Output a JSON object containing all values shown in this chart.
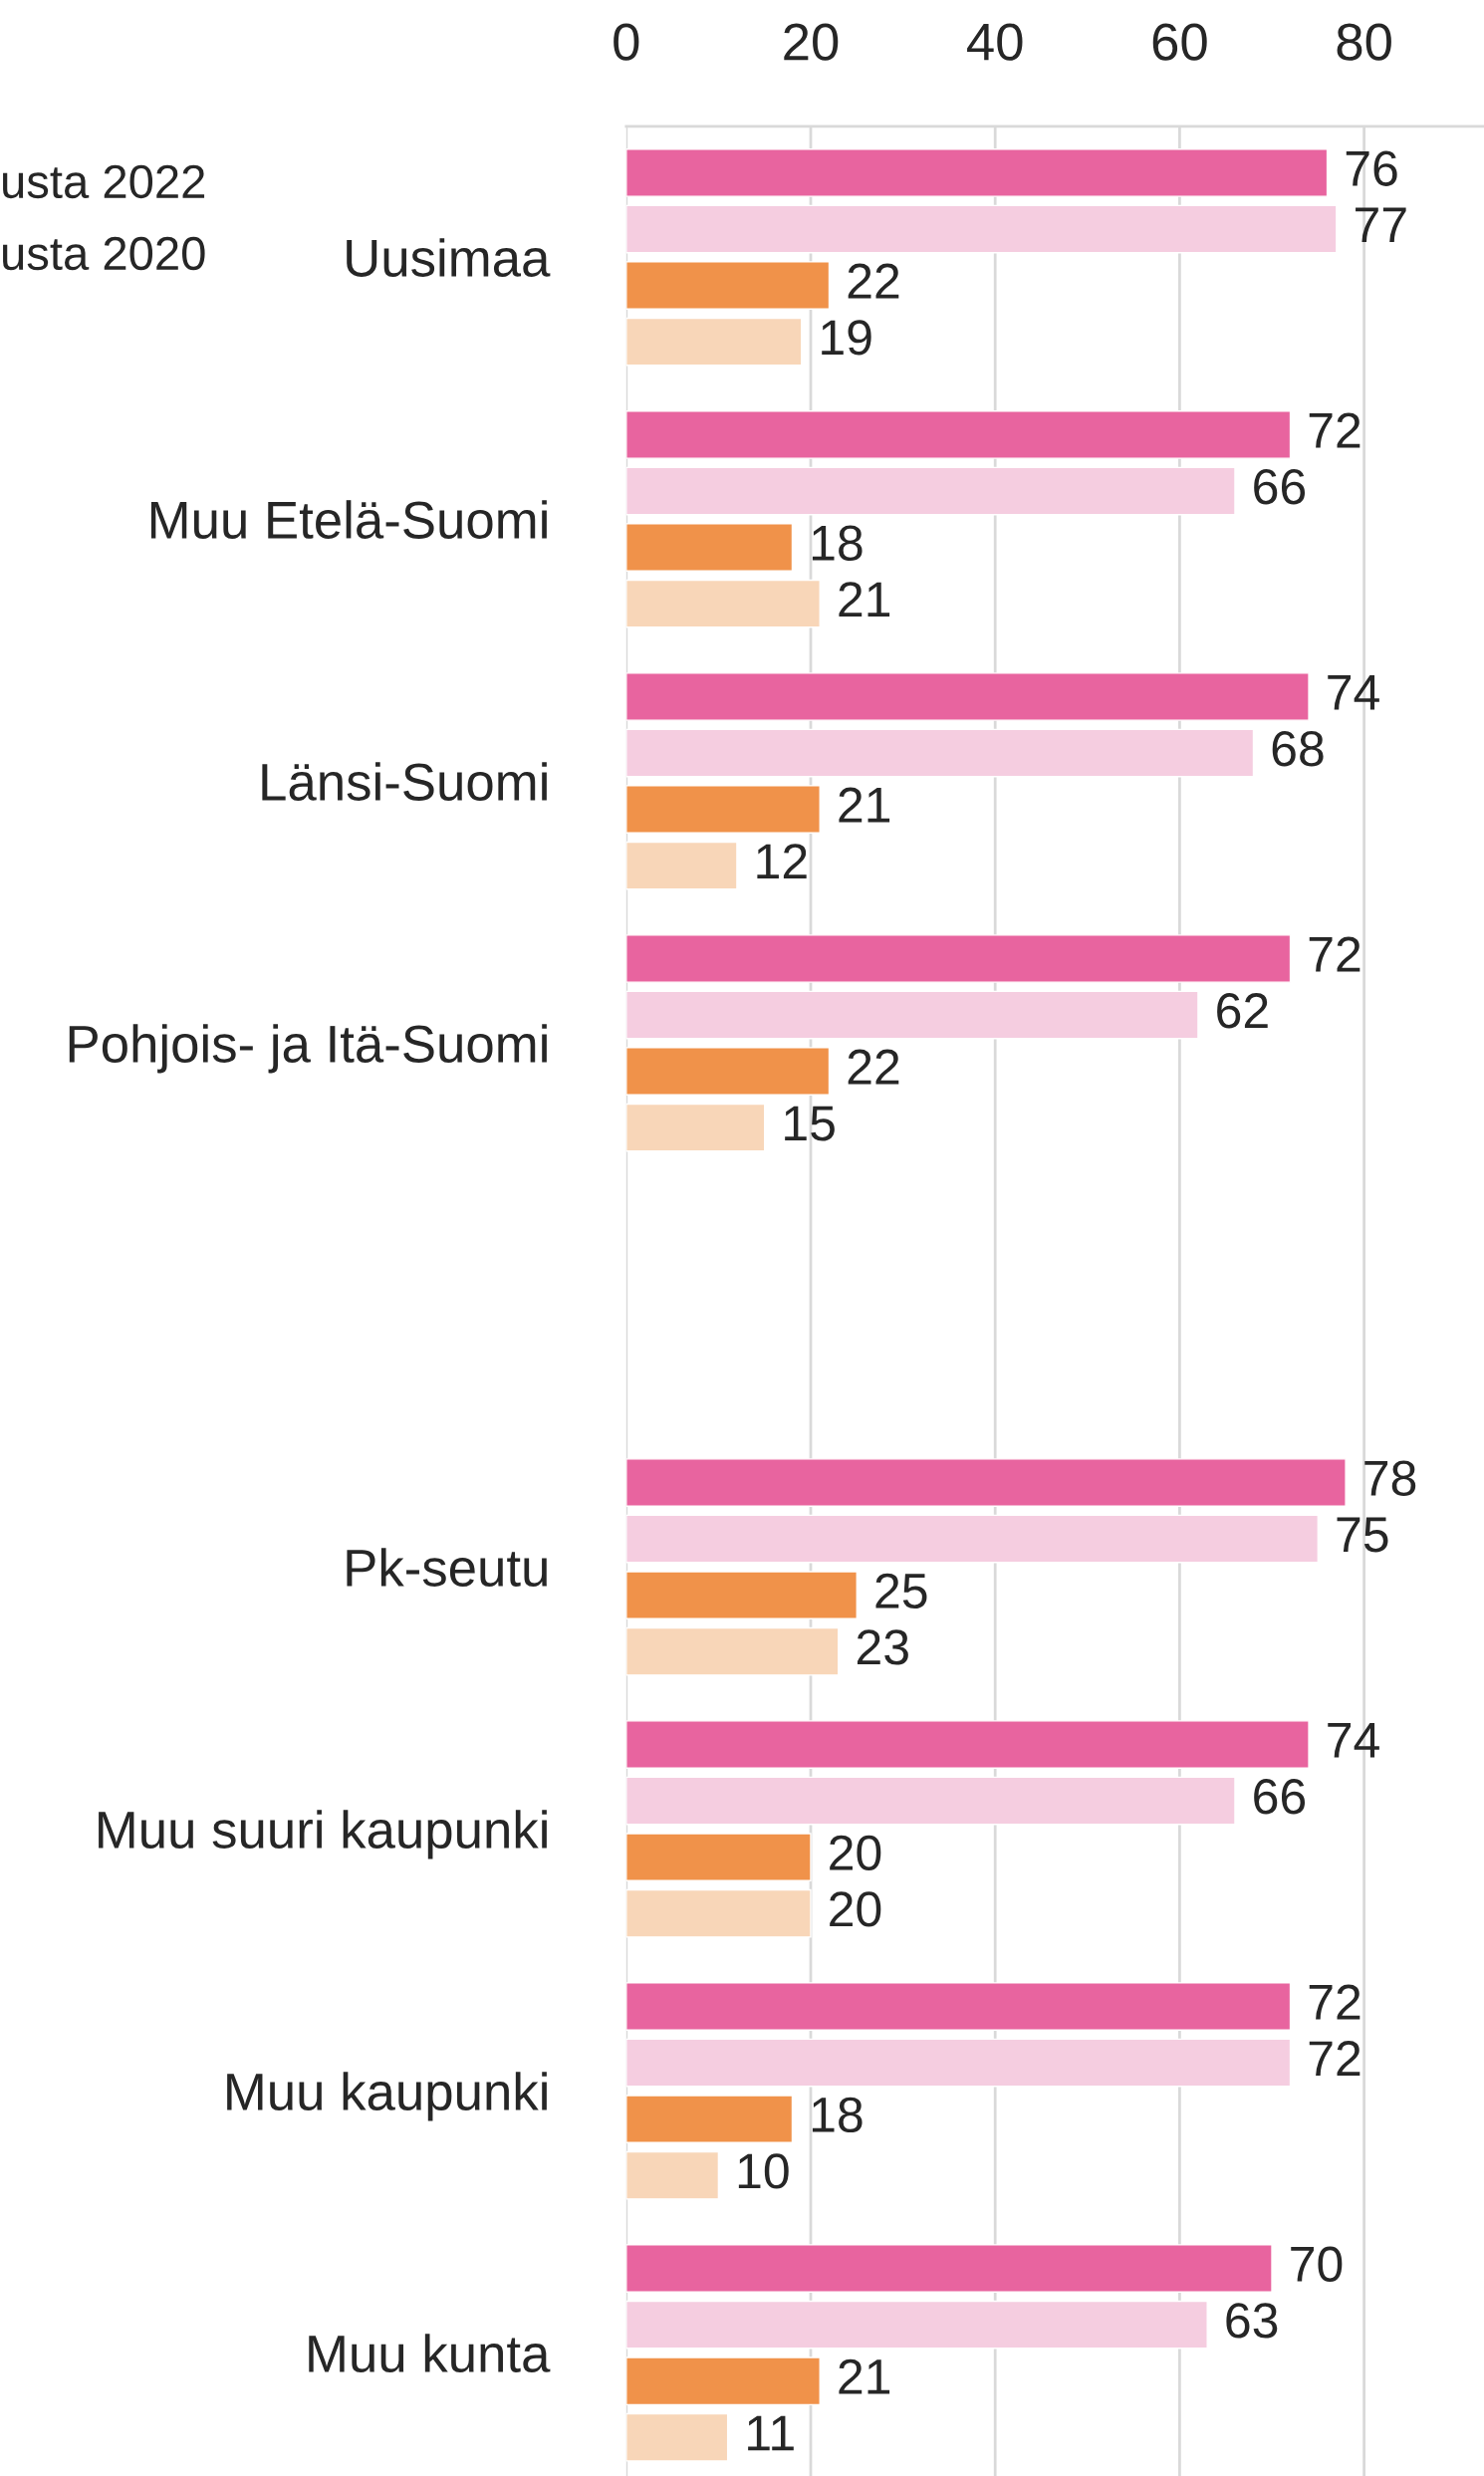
{
  "chart_data": {
    "type": "bar",
    "orientation": "horizontal",
    "categories": [
      "Uusimaa",
      "Muu Etelä-Suomi",
      "Länsi-Suomi",
      "Pohjois- ja Itä-Suomi",
      null,
      "Pk-seutu",
      "Muu suuri kaupunki",
      "Muu kaupunki",
      "Muu kunta"
    ],
    "series": [
      {
        "color": "#e8649f",
        "values": [
          76,
          72,
          74,
          72,
          null,
          78,
          74,
          72,
          70
        ]
      },
      {
        "color": "#f5cde0",
        "values": [
          77,
          66,
          68,
          62,
          null,
          75,
          66,
          72,
          63
        ]
      },
      {
        "color": "#f0924a",
        "values": [
          22,
          18,
          21,
          22,
          null,
          25,
          20,
          18,
          21
        ]
      },
      {
        "color": "#f8d6b8",
        "values": [
          19,
          21,
          12,
          15,
          null,
          23,
          20,
          10,
          11
        ]
      }
    ],
    "xlim": [
      0,
      93
    ],
    "xticks": [
      0,
      20,
      40,
      60,
      80
    ],
    "grid": "x",
    "data_labels": true,
    "annotations": [
      "usta 2022",
      "usta 2020"
    ]
  }
}
